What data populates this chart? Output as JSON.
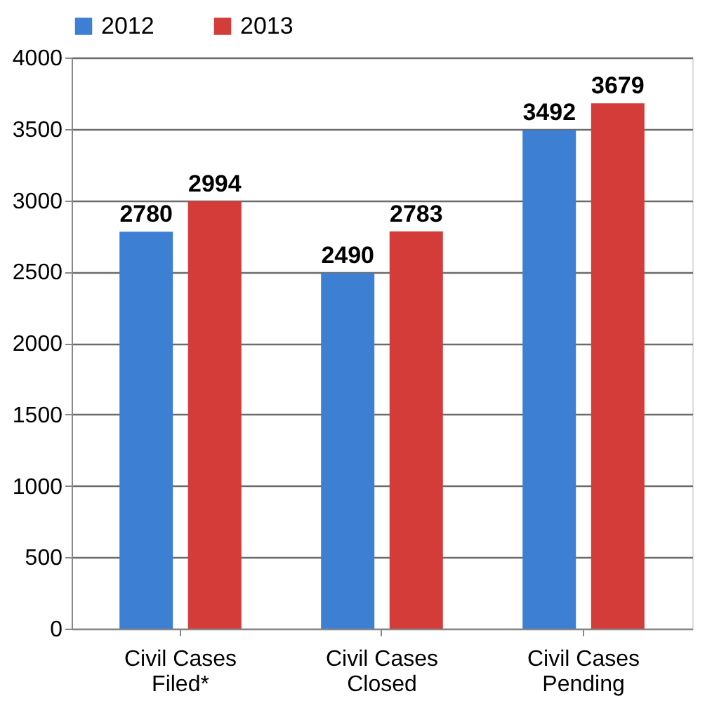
{
  "chart_data": {
    "type": "bar",
    "categories": [
      "Civil Cases Filed*",
      "Civil Cases Closed",
      "Civil Cases Pending"
    ],
    "series": [
      {
        "name": "2012",
        "color": "#3d7fd3",
        "values": [
          2780,
          2490,
          3492
        ]
      },
      {
        "name": "2013",
        "color": "#d43c3a",
        "values": [
          2994,
          2783,
          3679
        ]
      }
    ],
    "ylim": [
      0,
      4000
    ],
    "yticks": [
      0,
      500,
      1000,
      1500,
      2000,
      2500,
      3000,
      3500,
      4000
    ],
    "grid": "y",
    "legend": "top",
    "data_labels": true
  }
}
